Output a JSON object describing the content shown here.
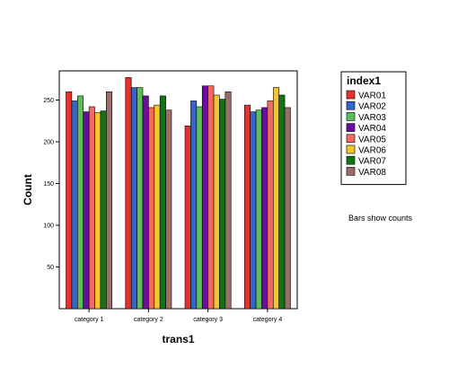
{
  "chart_data": {
    "type": "bar",
    "title": "",
    "xlabel": "trans1",
    "ylabel": "Count",
    "ylim": [
      0,
      285
    ],
    "yticks": [
      50,
      100,
      150,
      200,
      250
    ],
    "grid": false,
    "legend_title": "index1",
    "legend_position": "right",
    "note": "Bars show counts",
    "categories": [
      "category 1",
      "category 2",
      "category 3",
      "category 4"
    ],
    "series": [
      {
        "name": "VAR01",
        "color": "#e8302c",
        "values": [
          260,
          277,
          219,
          244
        ]
      },
      {
        "name": "VAR02",
        "color": "#3266c8",
        "values": [
          249,
          265,
          249,
          236
        ]
      },
      {
        "name": "VAR03",
        "color": "#5cbf5a",
        "values": [
          255,
          265,
          242,
          238
        ]
      },
      {
        "name": "VAR04",
        "color": "#6a0e9c",
        "values": [
          236,
          255,
          267,
          241
        ]
      },
      {
        "name": "VAR05",
        "color": "#f26b61",
        "values": [
          242,
          241,
          267,
          249
        ]
      },
      {
        "name": "VAR06",
        "color": "#f4c431",
        "values": [
          235,
          244,
          256,
          265
        ]
      },
      {
        "name": "VAR07",
        "color": "#0f7412",
        "values": [
          237,
          255,
          251,
          256
        ]
      },
      {
        "name": "VAR08",
        "color": "#9b6d68",
        "values": [
          260,
          238,
          260,
          241
        ]
      }
    ]
  }
}
